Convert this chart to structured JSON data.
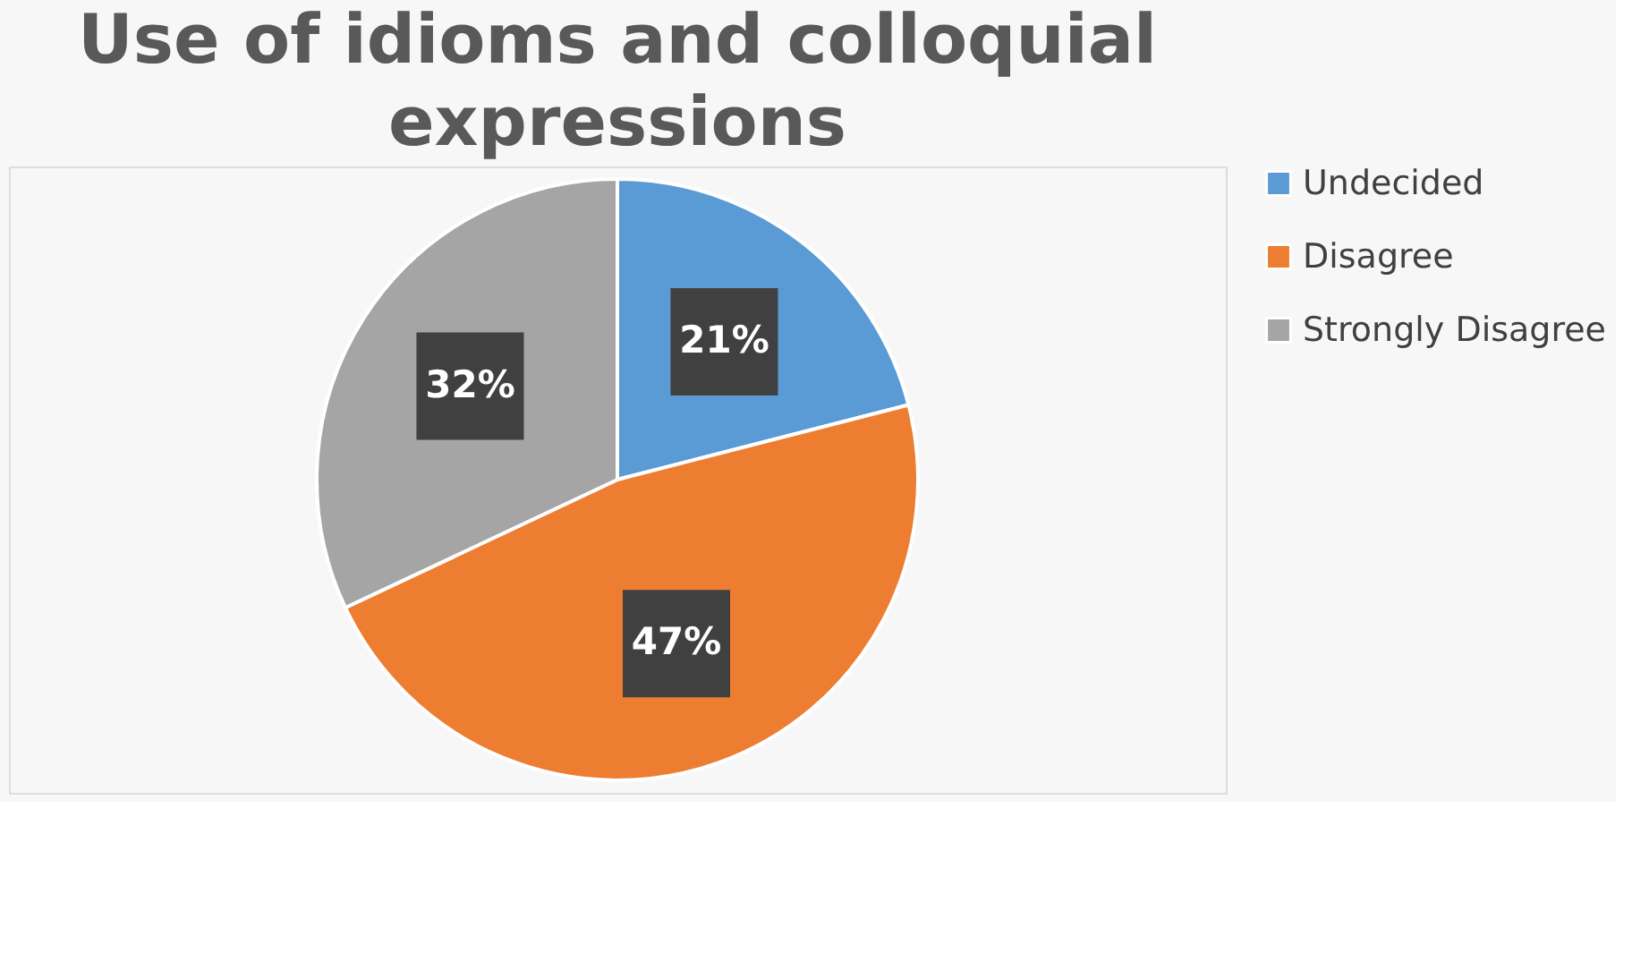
{
  "chart_data": {
    "type": "pie",
    "title": "Use of idioms and colloquial expressions",
    "categories": [
      "Undecided",
      "Disagree",
      "Strongly Disagree"
    ],
    "values": [
      21,
      47,
      32
    ],
    "colors": [
      "#5b9bd5",
      "#ed7d31",
      "#a5a5a5"
    ],
    "value_labels": [
      "21%",
      "47%",
      "32%"
    ],
    "legend": "right"
  }
}
